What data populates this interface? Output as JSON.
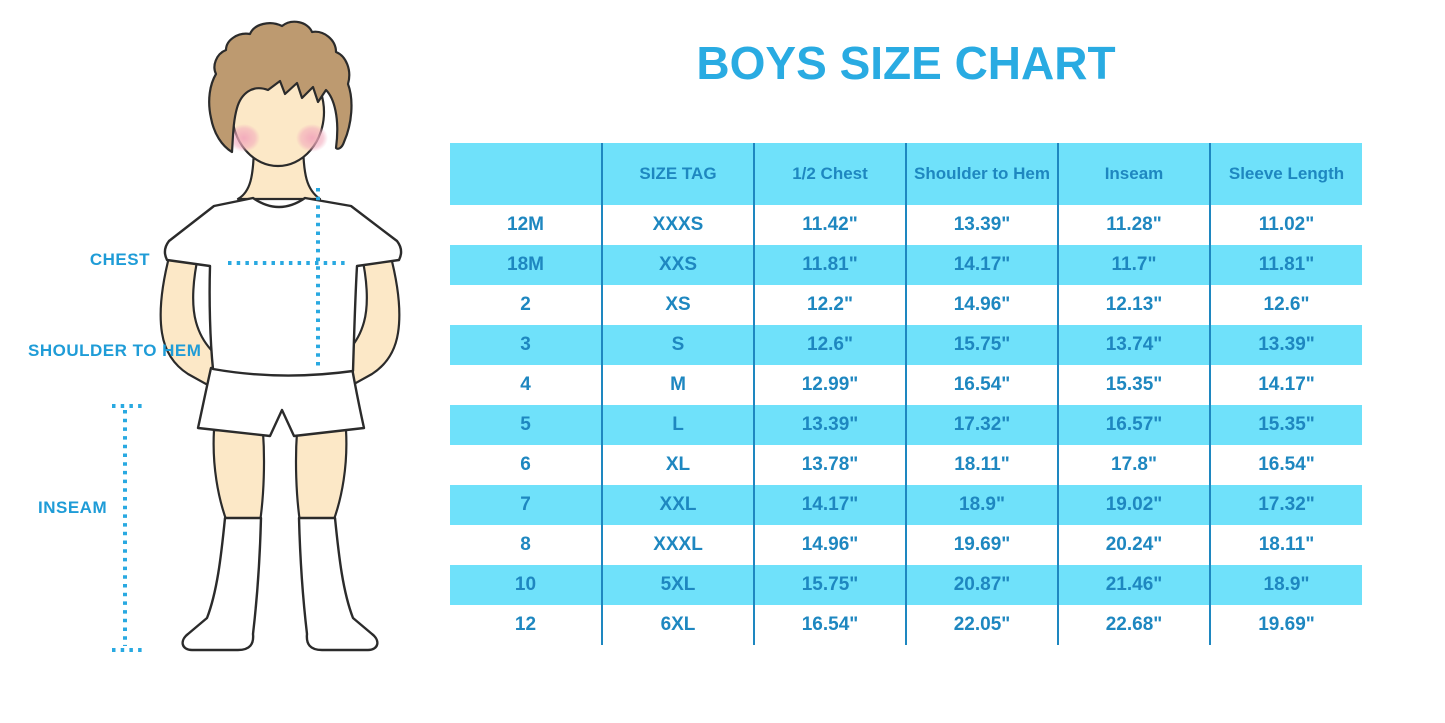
{
  "title": "BOYS SIZE CHART",
  "colors": {
    "title_blue": "#29ABE2",
    "label_blue": "#1F9CD7",
    "cell_blue": "#6FE1FA",
    "divider_blue": "#1E87C0",
    "table_text": "#1E87C0",
    "dot_blue": "#29A9E1",
    "hair_brown": "#BD9A70",
    "skin": "#FCE8C7",
    "blush_pink": "#F2A9BC",
    "outline": "#2b2b2b"
  },
  "figure": {
    "description": "Cartoon boy in white t-shirt, white shorts and knee socks with dotted measurement guides",
    "labels": [
      {
        "id": "chest",
        "text": "CHEST"
      },
      {
        "id": "shoulder_to_hem",
        "text": "SHOULDER TO HEM"
      },
      {
        "id": "inseam",
        "text": "INSEAM"
      }
    ]
  },
  "chart_data": {
    "type": "table",
    "title": "BOYS SIZE CHART",
    "columns": [
      "",
      "SIZE TAG",
      "1/2 Chest",
      "Shoulder to Hem",
      "Inseam",
      "Sleeve Length"
    ],
    "rows": [
      [
        "12M",
        "XXXS",
        "11.42\"",
        "13.39\"",
        "11.28\"",
        "11.02\""
      ],
      [
        "18M",
        "XXS",
        "11.81\"",
        "14.17\"",
        "11.7\"",
        "11.81\""
      ],
      [
        "2",
        "XS",
        "12.2\"",
        "14.96\"",
        "12.13\"",
        "12.6\""
      ],
      [
        "3",
        "S",
        "12.6\"",
        "15.75\"",
        "13.74\"",
        "13.39\""
      ],
      [
        "4",
        "M",
        "12.99\"",
        "16.54\"",
        "15.35\"",
        "14.17\""
      ],
      [
        "5",
        "L",
        "13.39\"",
        "17.32\"",
        "16.57\"",
        "15.35\""
      ],
      [
        "6",
        "XL",
        "13.78\"",
        "18.11\"",
        "17.8\"",
        "16.54\""
      ],
      [
        "7",
        "XXL",
        "14.17\"",
        "18.9\"",
        "19.02\"",
        "17.32\""
      ],
      [
        "8",
        "XXXL",
        "14.96\"",
        "19.69\"",
        "20.24\"",
        "18.11\""
      ],
      [
        "10",
        "5XL",
        "15.75\"",
        "20.87\"",
        "21.46\"",
        "18.9\""
      ],
      [
        "12",
        "6XL",
        "16.54\"",
        "22.05\"",
        "22.68\"",
        "19.69\""
      ]
    ],
    "layout": {
      "row_striping": "white / light-blue alternating, header light-blue",
      "column_dividers": "dark blue vertical lines, no outer border",
      "units": "inches"
    }
  }
}
